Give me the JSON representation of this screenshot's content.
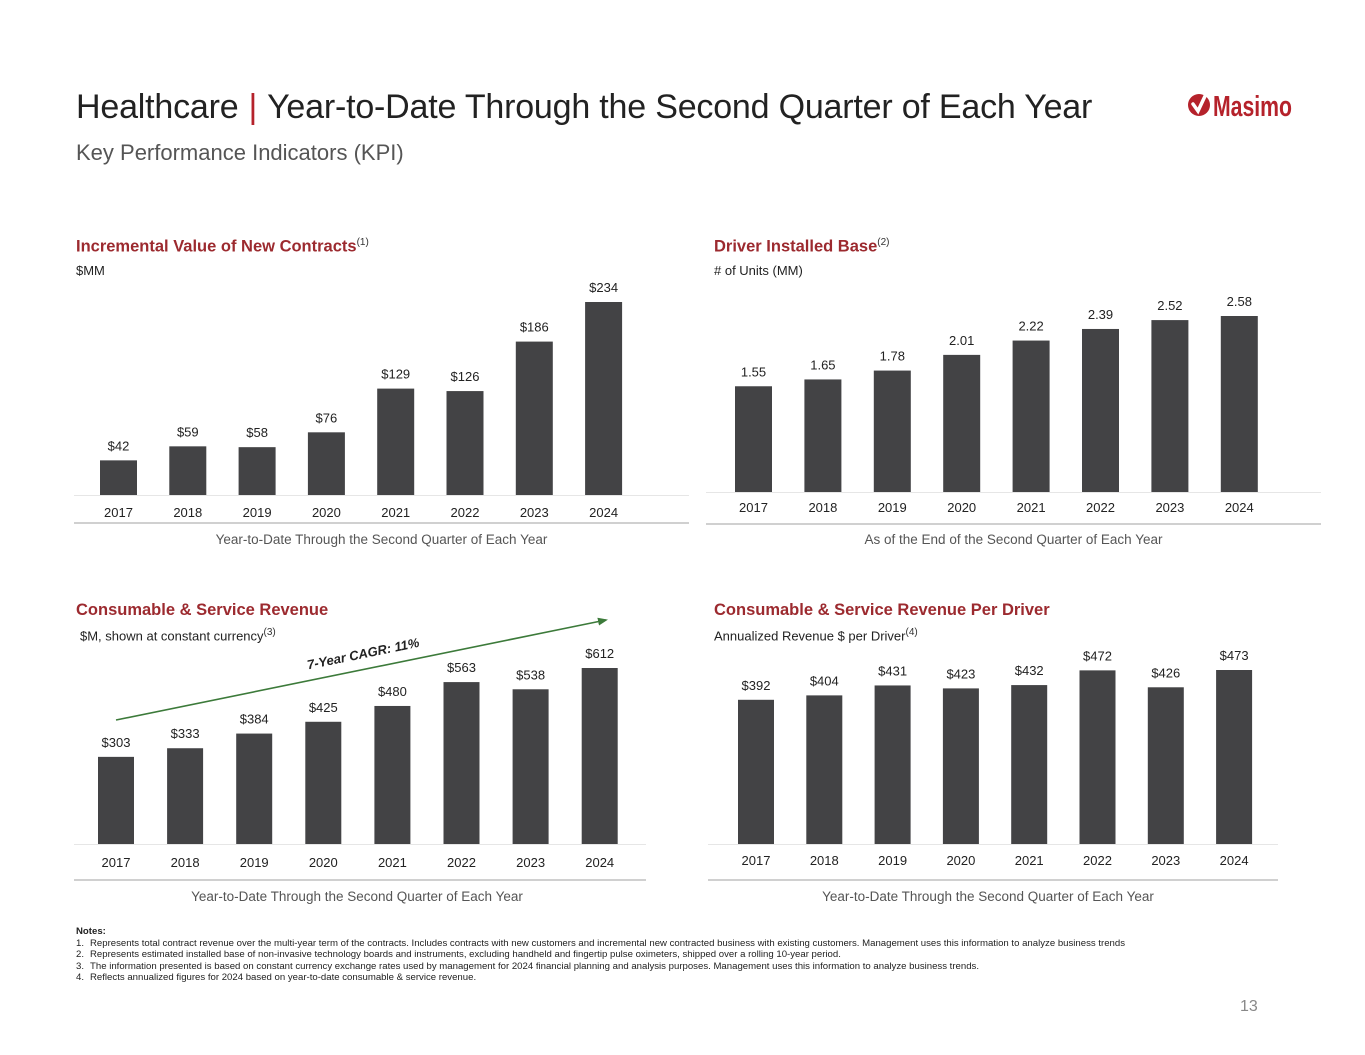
{
  "header": {
    "title_left": "Healthcare",
    "title_sep": "|",
    "title_right": "Year-to-Date Through the Second Quarter of Each Year",
    "subtitle": "Key Performance Indicators (KPI)",
    "logo_text": "Masimo"
  },
  "colors": {
    "accent": "#9c2a2f",
    "bar": "#434345",
    "trend": "#3c7a3a",
    "axis": "#d0d0d0"
  },
  "chart_data": [
    {
      "type": "bar",
      "title": "Incremental Value of New Contracts",
      "title_sup": "(1)",
      "unit": "$MM",
      "categories": [
        "2017",
        "2018",
        "2019",
        "2020",
        "2021",
        "2022",
        "2023",
        "2024"
      ],
      "values": [
        42,
        59,
        58,
        76,
        129,
        126,
        186,
        234
      ],
      "labels": [
        "$42",
        "$59",
        "$58",
        "$76",
        "$129",
        "$126",
        "$186",
        "$234"
      ],
      "ylim": [
        0,
        234
      ],
      "caption": "Year-to-Date Through the Second Quarter of Each Year"
    },
    {
      "type": "bar",
      "title": "Driver Installed Base",
      "title_sup": "(2)",
      "unit": "# of Units (MM)",
      "categories": [
        "2017",
        "2018",
        "2019",
        "2020",
        "2021",
        "2022",
        "2023",
        "2024"
      ],
      "values": [
        1.55,
        1.65,
        1.78,
        2.01,
        2.22,
        2.39,
        2.52,
        2.58
      ],
      "labels": [
        "1.55",
        "1.65",
        "1.78",
        "2.01",
        "2.22",
        "2.39",
        "2.52",
        "2.58"
      ],
      "ylim": [
        0,
        2.58
      ],
      "caption": "As of the End of the Second Quarter of Each Year"
    },
    {
      "type": "bar",
      "title": "Consumable & Service Revenue",
      "title_sup": "",
      "unit": "$M, shown at constant currency",
      "unit_sup": "(3)",
      "categories": [
        "2017",
        "2018",
        "2019",
        "2020",
        "2021",
        "2022",
        "2023",
        "2024"
      ],
      "values": [
        303,
        333,
        384,
        425,
        480,
        563,
        538,
        612
      ],
      "labels": [
        "$303",
        "$333",
        "$384",
        "$425",
        "$480",
        "$563",
        "$538",
        "$612"
      ],
      "ylim": [
        0,
        612
      ],
      "annotation": "7-Year CAGR: 11%",
      "caption": "Year-to-Date Through the Second Quarter of Each Year"
    },
    {
      "type": "bar",
      "title": "Consumable & Service Revenue Per Driver",
      "title_sup": "",
      "unit": "Annualized Revenue $ per Driver",
      "unit_sup": "(4)",
      "categories": [
        "2017",
        "2018",
        "2019",
        "2020",
        "2021",
        "2022",
        "2023",
        "2024"
      ],
      "values": [
        392,
        404,
        431,
        423,
        432,
        472,
        426,
        473
      ],
      "labels": [
        "$392",
        "$404",
        "$431",
        "$423",
        "$432",
        "$472",
        "$426",
        "$473"
      ],
      "ylim": [
        0,
        473
      ],
      "caption": "Year-to-Date Through the Second Quarter of Each Year"
    }
  ],
  "notes": {
    "heading": "Notes:",
    "items": [
      {
        "num": "1.",
        "text": "Represents total contract revenue over the multi-year term of the contracts.  Includes contracts with new customers and incremental new contracted business with existing customers. Management uses this information to analyze business trends"
      },
      {
        "num": "2.",
        "text": "Represents estimated installed base of non-invasive technology boards and instruments, excluding handheld and fingertip pulse oximeters, shipped over a rolling 10-year period."
      },
      {
        "num": "3.",
        "text": "The information presented is based on constant currency exchange rates used by management for 2024 financial planning and analysis purposes.  Management uses this information to analyze business trends."
      },
      {
        "num": "4.",
        "text": "Reflects annualized figures for 2024 based on year-to-date consumable & service revenue."
      }
    ]
  },
  "page_number": "13"
}
